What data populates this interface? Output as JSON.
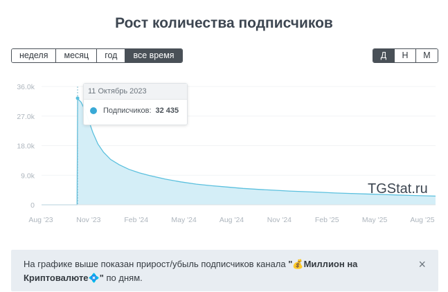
{
  "title": "Рост количества подписчиков",
  "period_buttons": [
    {
      "label": "неделя",
      "active": false
    },
    {
      "label": "месяц",
      "active": false
    },
    {
      "label": "год",
      "active": false
    },
    {
      "label": "все время",
      "active": true
    }
  ],
  "scale_buttons": [
    {
      "label": "Д",
      "active": true
    },
    {
      "label": "Н",
      "active": false
    },
    {
      "label": "М",
      "active": false
    }
  ],
  "tooltip": {
    "date": "11 Октябрь 2023",
    "series_label": "Подписчиков:",
    "value": "32 435",
    "color": "#39a9d6"
  },
  "watermark": "TGStat.ru",
  "info": {
    "prefix": "На графике выше показан прирост/убыль подписчиков канала ",
    "channel": "\"💰Миллион на Криптовалюте💠\"",
    "suffix": " по дням.",
    "close_icon": "×"
  },
  "colors": {
    "line": "#5bc0de",
    "area": "#d4eef7",
    "axis_text": "#adb5bd",
    "grid": "#f1f3f5"
  },
  "chart_data": {
    "type": "area",
    "y_ticks": [
      "0",
      "9.0k",
      "18.0k",
      "27.0k",
      "36.0k"
    ],
    "y_tick_values": [
      0,
      9000,
      18000,
      27000,
      36000
    ],
    "ylim": [
      0,
      36000
    ],
    "x_ticks": [
      "Aug '23",
      "Nov '23",
      "Feb '24",
      "May '24",
      "Aug '24",
      "Nov '24",
      "Feb '25",
      "May '25",
      "Aug '25"
    ],
    "series": [
      {
        "x": [
          "2023-08-01",
          "2023-10-01",
          "2023-10-10",
          "2023-10-11",
          "2023-10-13",
          "2023-10-18",
          "2023-10-25",
          "2023-11-01",
          "2023-11-10",
          "2023-11-20",
          "2023-12-01",
          "2023-12-15",
          "2024-01-01",
          "2024-01-20",
          "2024-02-10",
          "2024-03-01",
          "2024-04-01",
          "2024-05-01",
          "2024-06-01",
          "2024-07-01",
          "2024-08-01",
          "2024-09-01",
          "2024-10-01",
          "2024-11-01",
          "2024-12-01",
          "2025-01-01",
          "2025-02-01",
          "2025-03-01",
          "2025-04-01",
          "2025-05-01",
          "2025-06-01",
          "2025-07-01",
          "2025-08-01",
          "2025-09-15"
        ],
        "values": [
          0,
          0,
          0,
          32435,
          32000,
          31200,
          29000,
          26000,
          22000,
          18500,
          16000,
          13800,
          12200,
          10800,
          9700,
          8900,
          7800,
          7000,
          6300,
          5800,
          5400,
          5000,
          4700,
          4450,
          4200,
          4000,
          3800,
          3600,
          3450,
          3300,
          3150,
          3000,
          2850,
          2650
        ]
      }
    ],
    "highlight": {
      "x": "2023-10-11",
      "value": 32435
    },
    "grid": true,
    "legend": "none"
  }
}
